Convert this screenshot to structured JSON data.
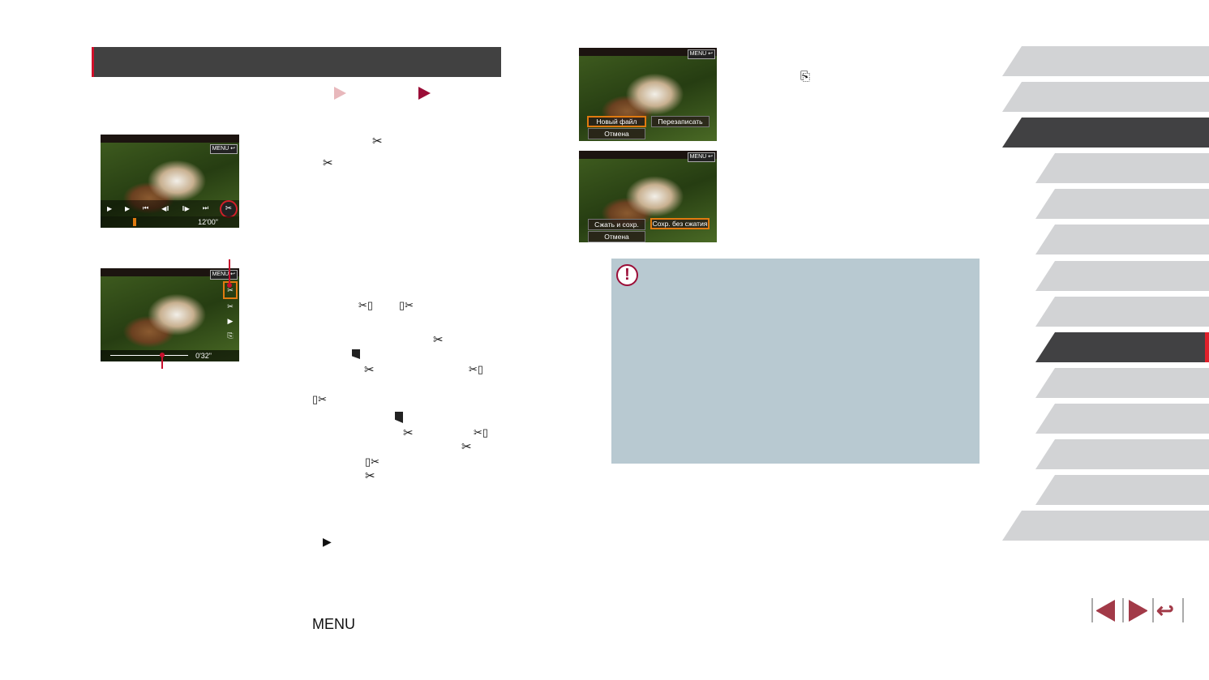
{
  "screens": {
    "menu_label": "MENU",
    "screen1": {
      "duration": "12'00\""
    },
    "screen2": {
      "position": "0'32\""
    },
    "screen3": {
      "new_file": "Новый файл",
      "overwrite": "Перезаписать",
      "cancel": "Отмена"
    },
    "screen4": {
      "compress_save": "Сжать и сохр.",
      "save_no_compress": "Сохр. без сжатия",
      "cancel": "Отмена"
    }
  },
  "body": {
    "menu_button": "MENU"
  },
  "colors": {
    "accent": "#9b0d37",
    "title_bar": "#414141",
    "note_bg": "#b8c9d1",
    "tab": "#d2d3d5",
    "tab_active": "#414143"
  },
  "sidebar": {
    "tabs": 14,
    "active_top": 3,
    "active_sub": 9
  }
}
